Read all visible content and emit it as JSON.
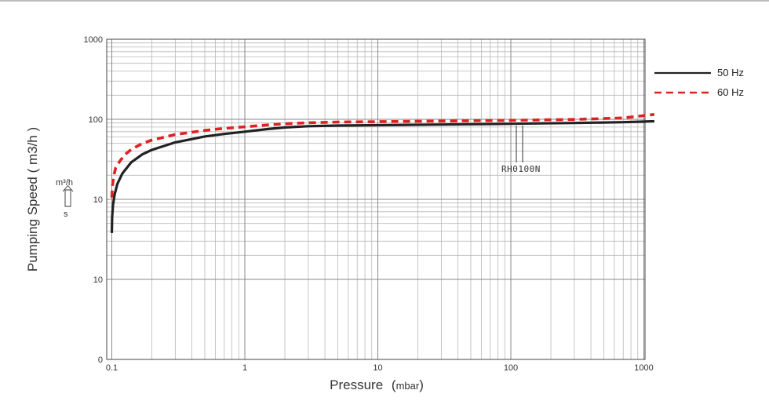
{
  "chart_data": {
    "type": "line",
    "xlabel": "Pressure",
    "xlabel_unit": "mbar",
    "ylabel": "Pumping Speed ( m3/h )",
    "x_scale": "log",
    "y_scale": "log",
    "xlim": [
      0.09,
      1200
    ],
    "ylim": [
      0,
      1000
    ],
    "x_ticks": [
      {
        "value": 0.1,
        "label": "0.1"
      },
      {
        "value": 1,
        "label": "1"
      },
      {
        "value": 10,
        "label": "10"
      },
      {
        "value": 100,
        "label": "100"
      },
      {
        "value": 1000,
        "label": "1000"
      }
    ],
    "y_ticks": [
      {
        "label": "1000"
      },
      {
        "label": "100"
      },
      {
        "label": "10"
      },
      {
        "label": "10"
      },
      {
        "label": "0"
      }
    ],
    "grid": true,
    "legend_position": "right",
    "unit_marker": {
      "top": "m³/h",
      "bottom": "s"
    },
    "annotation": "RH0100N",
    "series": [
      {
        "name": "50 Hz",
        "color": "#222222",
        "style": "solid",
        "points": [
          [
            0.1,
            3.8
          ],
          [
            0.1005,
            6.0
          ],
          [
            0.102,
            8.5
          ],
          [
            0.105,
            11.5
          ],
          [
            0.11,
            15.5
          ],
          [
            0.12,
            21
          ],
          [
            0.14,
            29
          ],
          [
            0.17,
            36.5
          ],
          [
            0.2,
            41.5
          ],
          [
            0.3,
            51.5
          ],
          [
            0.5,
            61
          ],
          [
            0.7,
            65.5
          ],
          [
            1,
            70
          ],
          [
            1.5,
            75.5
          ],
          [
            2,
            79
          ],
          [
            3,
            82
          ],
          [
            5,
            83.5
          ],
          [
            10,
            84.5
          ],
          [
            30,
            86
          ],
          [
            100,
            88
          ],
          [
            300,
            90
          ],
          [
            700,
            92
          ],
          [
            1200,
            94.5
          ]
        ]
      },
      {
        "name": "60 Hz",
        "color": "#dd2222",
        "style": "dashed",
        "points": [
          [
            0.1,
            10.5
          ],
          [
            0.101,
            14.5
          ],
          [
            0.103,
            19
          ],
          [
            0.107,
            25
          ],
          [
            0.115,
            30
          ],
          [
            0.125,
            36
          ],
          [
            0.14,
            42
          ],
          [
            0.17,
            50
          ],
          [
            0.2,
            55
          ],
          [
            0.3,
            64.5
          ],
          [
            0.5,
            72.5
          ],
          [
            0.7,
            77
          ],
          [
            1,
            80.5
          ],
          [
            1.5,
            85
          ],
          [
            2,
            88
          ],
          [
            3,
            90.5
          ],
          [
            5,
            92.5
          ],
          [
            10,
            93.5
          ],
          [
            30,
            95
          ],
          [
            100,
            97
          ],
          [
            300,
            99.5
          ],
          [
            700,
            104
          ],
          [
            1200,
            115
          ]
        ]
      }
    ]
  }
}
